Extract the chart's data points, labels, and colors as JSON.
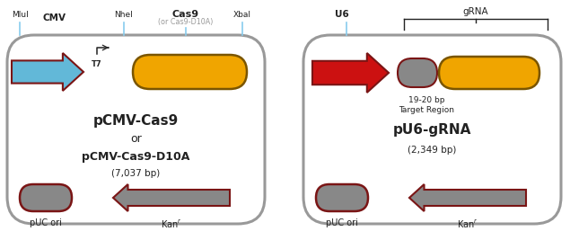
{
  "bg_color": "#ffffff",
  "plasmid_border_color": "#999999",
  "arrow_blue_color": "#62b8d8",
  "arrow_red_color": "#cc1111",
  "arrow_gray_color": "#888888",
  "arrow_outline_color": "#7a1515",
  "cas9_fill_color": "#f0a500",
  "cas9_outline_color": "#7a5500",
  "scaffold_fill_color": "#888888",
  "scaffold_outline_color": "#7a1515",
  "puc_fill_color": "#888888",
  "puc_outline_color": "#7a1515",
  "line_color": "#88ccee",
  "text_color": "#222222",
  "gray_text_color": "#999999",
  "left_label1": "pCMV-Cas9",
  "left_label2": "or",
  "left_label3": "pCMV-Cas9-D10A",
  "left_label4": "(7,037 bp)",
  "right_label1": "pU6-gRNA",
  "right_label2": "(2,349 bp)",
  "cas9_sublabel": "(or Cas9-D10A)",
  "mlui_label": "MluI",
  "nhei_label": "NheI",
  "cmv_label": "CMV",
  "t7_label": "T7",
  "cas9_label": "Cas9",
  "xbai_label": "XbaI",
  "u6_label": "U6",
  "grna_label": "gRNA",
  "target_line1": "19-20 bp",
  "target_line2": "Target Region",
  "puc_ori_label": "pUC ori",
  "kanr_label": "Kan"
}
